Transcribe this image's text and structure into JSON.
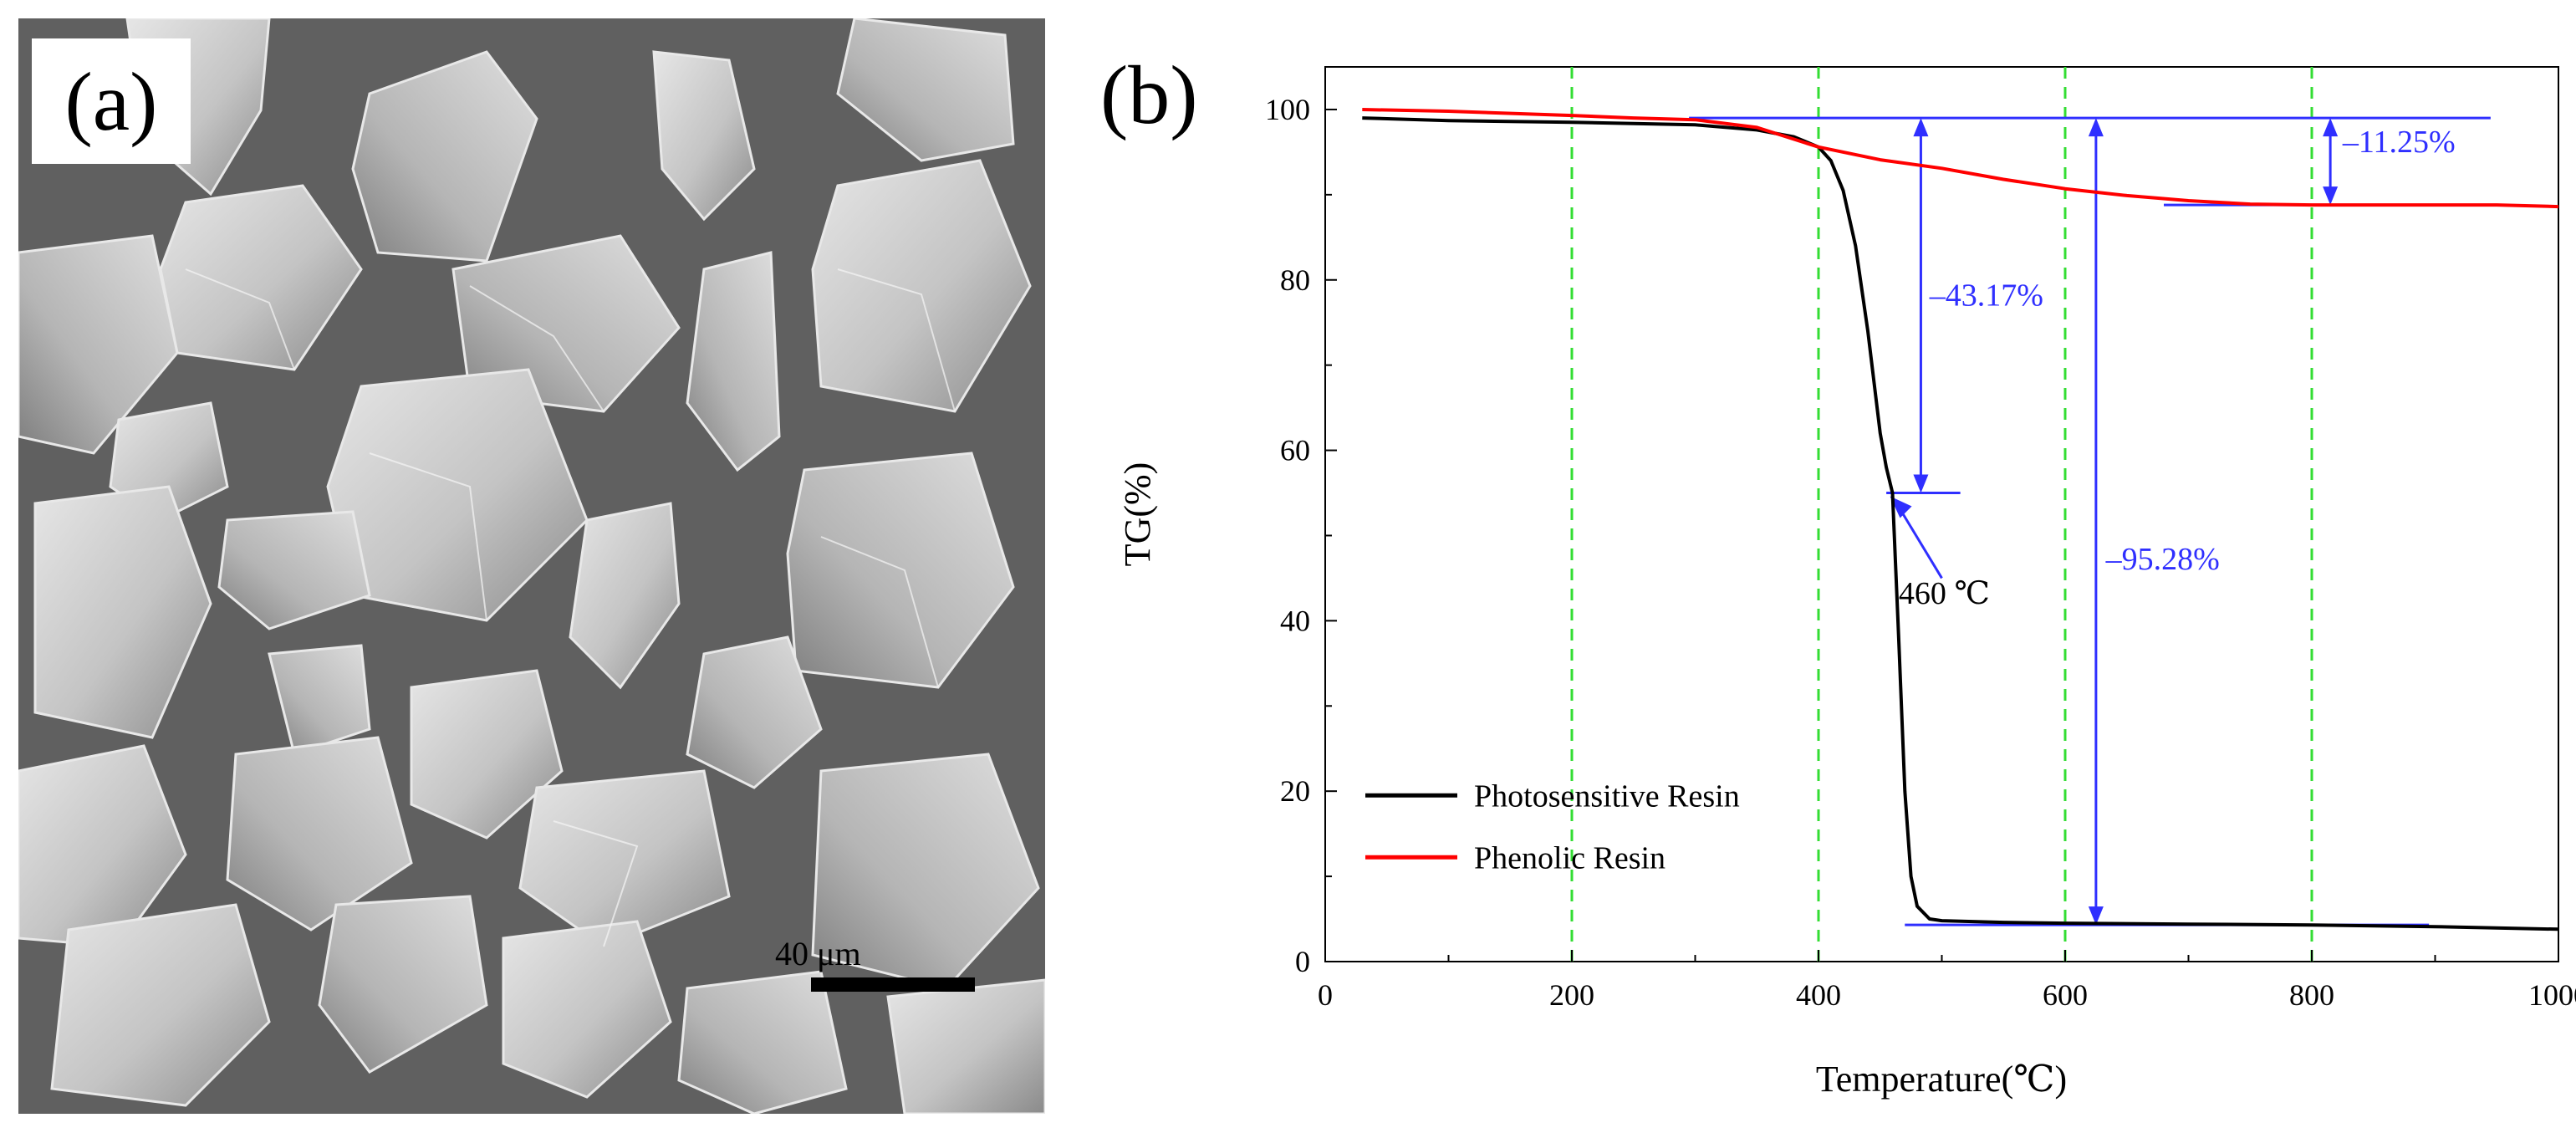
{
  "figure": {
    "panel_a": {
      "label": "(a)",
      "scale_bar_label": "40 μm"
    },
    "panel_b": {
      "label": "(b)"
    }
  },
  "chart_data": {
    "type": "line",
    "title": "",
    "xlabel": "Temperature(℃)",
    "ylabel": "TG(%)",
    "xlim": [
      0,
      1000
    ],
    "ylim": [
      0,
      105
    ],
    "xticks": [
      "0",
      "200",
      "400",
      "600",
      "800",
      "1000"
    ],
    "yticks": [
      "0",
      "20",
      "40",
      "60",
      "80",
      "100"
    ],
    "grid": "vertical dashed lines at 200, 400, 600, 800",
    "grid_x": [
      200,
      400,
      600,
      800
    ],
    "legend_position": "bottom-left",
    "series": [
      {
        "name": "Photosensitive Resin",
        "color": "#000000",
        "x": [
          30,
          100,
          200,
          300,
          350,
          380,
          400,
          410,
          420,
          430,
          440,
          450,
          455,
          460,
          465,
          470,
          475,
          480,
          490,
          500,
          550,
          600,
          700,
          800,
          900,
          1000
        ],
        "y": [
          99.0,
          98.7,
          98.5,
          98.2,
          97.6,
          96.8,
          95.6,
          94.0,
          90.5,
          84.0,
          74.0,
          62.0,
          58.0,
          55.0,
          38.0,
          20.0,
          10.0,
          6.5,
          5.0,
          4.8,
          4.6,
          4.5,
          4.4,
          4.3,
          4.1,
          3.8
        ]
      },
      {
        "name": "Phenolic Resin",
        "color": "#ff0000",
        "x": [
          30,
          100,
          200,
          250,
          300,
          350,
          400,
          450,
          500,
          550,
          600,
          650,
          700,
          750,
          800,
          850,
          900,
          950,
          1000
        ],
        "y": [
          100.0,
          99.8,
          99.3,
          99.0,
          98.8,
          97.9,
          95.6,
          94.1,
          93.1,
          91.8,
          90.7,
          89.9,
          89.3,
          88.9,
          88.8,
          88.8,
          88.8,
          88.8,
          88.6
        ]
      }
    ],
    "annotations": {
      "ref_top": 99,
      "ref_phenolic": 88.8,
      "ref_photo": 4.3,
      "ref_mid": 55,
      "onset_label": "460 ℃",
      "drop_43": "–43.17%",
      "drop_95": "–95.28%",
      "drop_11": "–11.25%",
      "annotation_color": "#2f2fff"
    }
  }
}
